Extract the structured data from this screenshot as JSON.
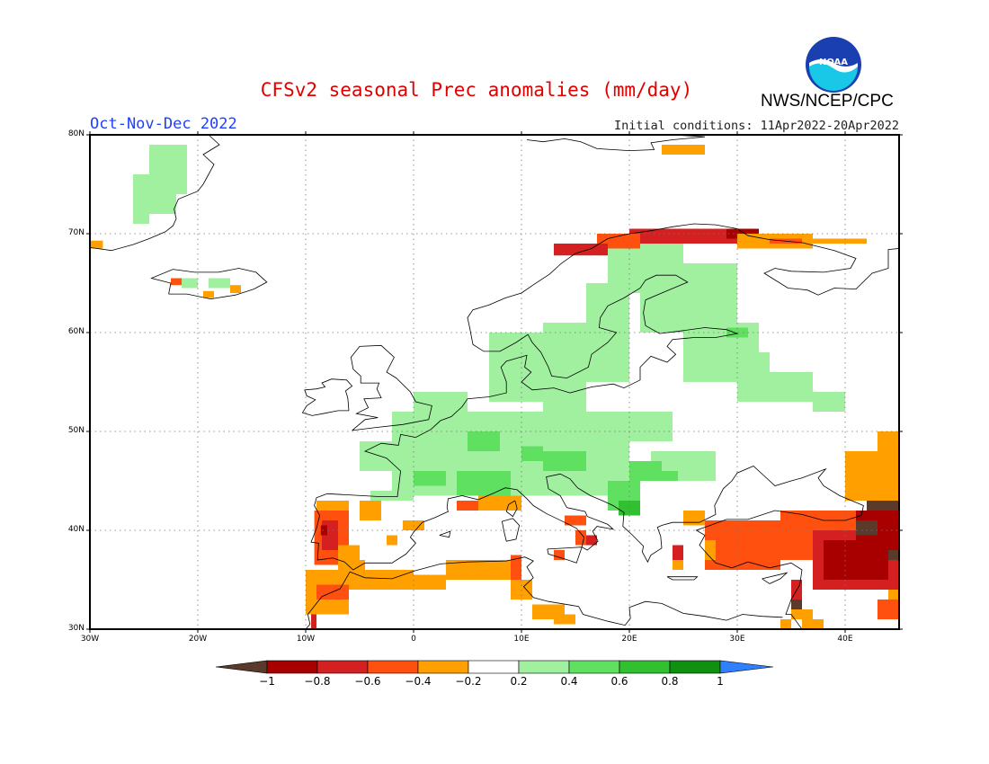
{
  "title": "CFSv2 seasonal Prec anomalies (mm/day)",
  "season": "Oct-Nov-Dec 2022",
  "initial_conditions": "Initial conditions: 11Apr2022-20Apr2022",
  "agency": "NWS/NCEP/CPC",
  "logo_text": "NOAA",
  "map": {
    "lon_range": [
      -30,
      45
    ],
    "lat_range": [
      30,
      80
    ],
    "lat_labels": [
      "80N",
      "70N",
      "60N",
      "50N",
      "40N",
      "30N"
    ],
    "lon_labels": [
      "30W",
      "20W",
      "10W",
      "0",
      "10E",
      "20E",
      "30E",
      "40E"
    ]
  },
  "colorbar": {
    "labels": [
      "-1",
      "-0.8",
      "-0.6",
      "-0.4",
      "-0.2",
      "0.2",
      "0.4",
      "0.6",
      "0.8",
      "1"
    ],
    "colors": [
      "#5a3a2a",
      "#a80000",
      "#d42020",
      "#ff5010",
      "#ffa000",
      "#ffffff",
      "#a0f0a0",
      "#60e060",
      "#30c030",
      "#109010",
      "#2f7fff"
    ]
  }
}
